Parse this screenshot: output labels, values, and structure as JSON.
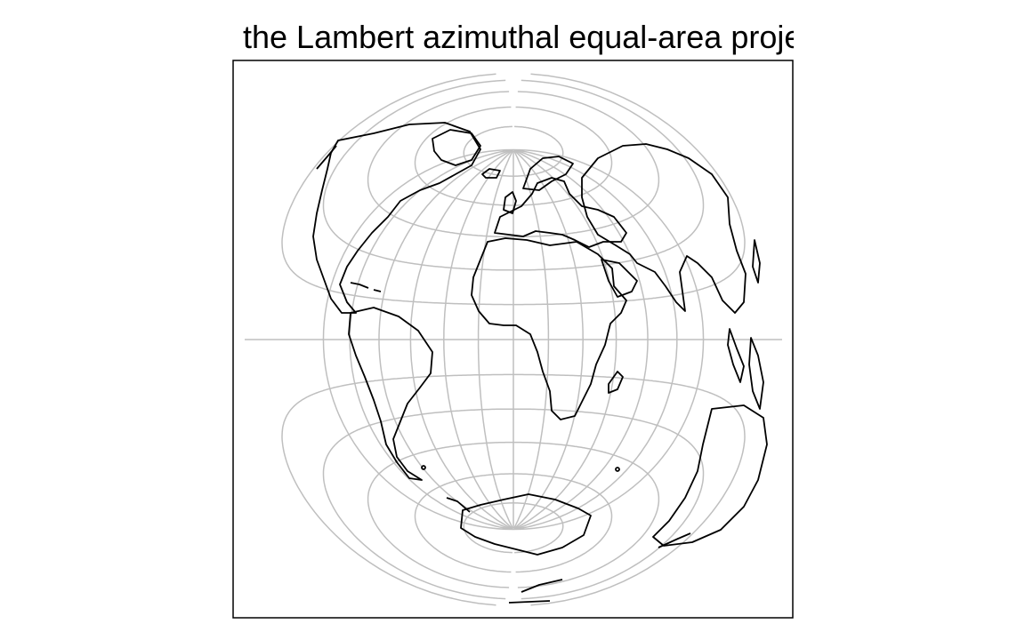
{
  "title": "the Lambert azimuthal equal-area projection",
  "projection": {
    "type": "lambert-azimuthal-equal-area",
    "center_lon": 0,
    "center_lat": 0
  },
  "graticule": {
    "meridian_step_deg": 15,
    "parallel_step_deg": 15
  },
  "colors": {
    "graticule": "#bfbfbf",
    "coastline": "#000000",
    "frame": "#000000",
    "background": "#ffffff"
  }
}
